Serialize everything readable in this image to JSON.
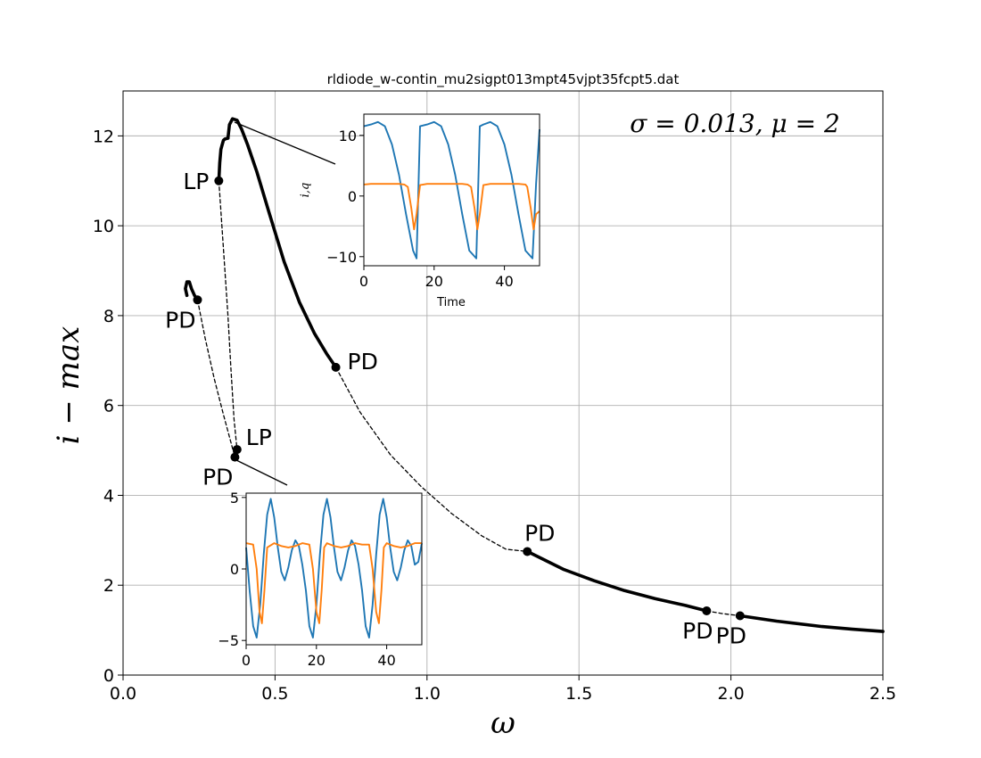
{
  "chart_data": [
    {
      "type": "line",
      "title": "rldiode_w-contin_mu2sigpt013mpt45vjpt35fcpt5.dat",
      "xlabel": "ω",
      "ylabel": "i − max",
      "annotation": "σ = 0.013, μ = 2",
      "xlim": [
        0.0,
        2.5
      ],
      "ylim": [
        0,
        13
      ],
      "xticks": [
        "0.0",
        "0.5",
        "1.0",
        "1.5",
        "2.0",
        "2.5"
      ],
      "yticks": [
        "0",
        "2",
        "4",
        "6",
        "8",
        "10",
        "12"
      ],
      "grid": true,
      "series": [
        {
          "style": "stable",
          "x": [
            0.315,
            0.318,
            0.322,
            0.33,
            0.335,
            0.345
          ],
          "y": [
            11.0,
            11.4,
            11.7,
            11.9,
            11.93,
            11.95
          ]
        },
        {
          "style": "stable",
          "x": [
            0.345,
            0.35,
            0.36,
            0.375,
            0.39,
            0.41,
            0.44,
            0.48,
            0.53,
            0.58,
            0.63,
            0.67,
            0.7
          ],
          "y": [
            11.95,
            12.25,
            12.38,
            12.35,
            12.15,
            11.8,
            11.2,
            10.3,
            9.2,
            8.3,
            7.6,
            7.15,
            6.85
          ]
        },
        {
          "style": "unstable",
          "x": [
            0.7,
            0.78,
            0.88,
            0.98,
            1.08,
            1.18,
            1.26,
            1.33
          ],
          "y": [
            6.85,
            5.85,
            4.9,
            4.2,
            3.6,
            3.1,
            2.8,
            2.75
          ]
        },
        {
          "style": "stable",
          "x": [
            1.33,
            1.45,
            1.55,
            1.65,
            1.75,
            1.85,
            1.92
          ],
          "y": [
            2.75,
            2.35,
            2.1,
            1.88,
            1.7,
            1.55,
            1.43
          ]
        },
        {
          "style": "unstable",
          "x": [
            1.92,
            1.97,
            2.03
          ],
          "y": [
            1.43,
            1.37,
            1.32
          ]
        },
        {
          "style": "stable",
          "x": [
            2.03,
            2.15,
            2.3,
            2.4,
            2.5
          ],
          "y": [
            1.32,
            1.2,
            1.08,
            1.02,
            0.97
          ]
        },
        {
          "style": "stable",
          "x": [
            0.21,
            0.205,
            0.21,
            0.218,
            0.225,
            0.235,
            0.245
          ],
          "y": [
            8.45,
            8.6,
            8.75,
            8.75,
            8.6,
            8.45,
            8.35
          ]
        },
        {
          "style": "unstable",
          "x": [
            0.245,
            0.27,
            0.3,
            0.33,
            0.35,
            0.368
          ],
          "y": [
            8.35,
            7.5,
            6.6,
            5.8,
            5.3,
            4.85
          ]
        },
        {
          "style": "unstable",
          "x": [
            0.315,
            0.33,
            0.345,
            0.355,
            0.365,
            0.375
          ],
          "y": [
            11.0,
            9.5,
            8.0,
            6.8,
            5.7,
            5.02
          ]
        },
        {
          "style": "unstable",
          "x": [
            0.368,
            0.375
          ],
          "y": [
            4.85,
            5.02
          ]
        }
      ],
      "points": [
        {
          "label": "LP",
          "x": 0.315,
          "y": 11.0,
          "anchor": "left"
        },
        {
          "label": "PD",
          "x": 0.245,
          "y": 8.35,
          "anchor": "below-left"
        },
        {
          "label": "PD",
          "x": 0.7,
          "y": 6.85,
          "anchor": "right"
        },
        {
          "label": "LP",
          "x": 0.375,
          "y": 5.02,
          "anchor": "above-right"
        },
        {
          "label": "PD",
          "x": 0.368,
          "y": 4.85,
          "anchor": "below-left"
        },
        {
          "label": "PD",
          "x": 1.33,
          "y": 2.75,
          "anchor": "above"
        },
        {
          "label": "PD",
          "x": 1.92,
          "y": 1.43,
          "anchor": "below"
        },
        {
          "label": "PD",
          "x": 2.03,
          "y": 1.32,
          "anchor": "below"
        }
      ]
    },
    {
      "type": "line",
      "title": "",
      "xlabel": "Time",
      "ylabel": "i,q",
      "xlim": [
        0,
        50
      ],
      "ylim": [
        -11.5,
        13.5
      ],
      "xticks": [
        "0",
        "20",
        "40"
      ],
      "yticks": [
        "−10",
        "0",
        "10"
      ],
      "series": [
        {
          "color": "#1f77b4",
          "x": [
            0,
            2,
            4,
            6,
            8,
            10,
            12,
            14,
            15,
            16,
            18,
            20,
            22,
            24,
            26,
            28,
            30,
            32,
            33,
            34,
            36,
            38,
            40,
            42,
            44,
            46,
            48,
            49,
            50
          ],
          "y": [
            11.5,
            11.8,
            12.2,
            11.5,
            8.5,
            3.5,
            -3,
            -9,
            -10.3,
            11.5,
            11.8,
            12.2,
            11.5,
            8.5,
            3.5,
            -3,
            -9,
            -10.3,
            11.5,
            11.8,
            12.2,
            11.5,
            8.5,
            3.5,
            -3,
            -9,
            -10.3,
            2,
            11
          ]
        },
        {
          "color": "#ff7f0e",
          "x": [
            0,
            2,
            4,
            6,
            8,
            10,
            11.5,
            12.5,
            13.5,
            14.3,
            15,
            16,
            18,
            20,
            22,
            24,
            26,
            28,
            29.5,
            30.5,
            31.5,
            32.3,
            33,
            34,
            36,
            38,
            40,
            42,
            44,
            46,
            46.5,
            47.5,
            48.3,
            49,
            50
          ],
          "y": [
            1.9,
            2.0,
            2.0,
            2.0,
            2.0,
            2.0,
            1.9,
            1.5,
            -2,
            -5.5,
            -3,
            1.8,
            2.0,
            2.0,
            2.0,
            2.0,
            2.0,
            2.0,
            1.9,
            1.5,
            -2,
            -5.5,
            -3,
            1.8,
            2.0,
            2.0,
            2.0,
            2.0,
            2.0,
            1.9,
            1.5,
            -2,
            -5.5,
            -3,
            -2.5
          ]
        }
      ]
    },
    {
      "type": "line",
      "title": "",
      "xlabel": "",
      "ylabel": "",
      "xlim": [
        0,
        50
      ],
      "ylim": [
        -5.3,
        5.3
      ],
      "xticks": [
        "0",
        "20",
        "40"
      ],
      "yticks": [
        "−5",
        "0",
        "5"
      ],
      "series": [
        {
          "color": "#1f77b4",
          "x": [
            0,
            1,
            2,
            3,
            4,
            5,
            6,
            7,
            8,
            9,
            10,
            11,
            12,
            13,
            14,
            15,
            16,
            17,
            18,
            19,
            20,
            21,
            22,
            23,
            24,
            25,
            26,
            27,
            28,
            29,
            30,
            31,
            32,
            33,
            34,
            35,
            36,
            37,
            38,
            39,
            40,
            41,
            42,
            43,
            44,
            45,
            46,
            47,
            48,
            49,
            50
          ],
          "y": [
            1.5,
            -1.5,
            -4.0,
            -4.8,
            -2.5,
            1.0,
            3.8,
            4.9,
            3.6,
            1.5,
            -0.2,
            -0.8,
            0.1,
            1.3,
            2.0,
            1.6,
            0.3,
            -1.5,
            -4.0,
            -4.8,
            -2.5,
            1.0,
            3.8,
            4.9,
            3.6,
            1.5,
            -0.2,
            -0.8,
            0.1,
            1.3,
            2.0,
            1.6,
            0.3,
            -1.5,
            -4.0,
            -4.8,
            -2.5,
            1.0,
            3.8,
            4.9,
            3.6,
            1.5,
            -0.2,
            -0.8,
            0.1,
            1.3,
            2.0,
            1.6,
            0.3,
            0.5,
            1.8
          ]
        },
        {
          "color": "#ff7f0e",
          "x": [
            0,
            2,
            3,
            3.8,
            4.5,
            5.2,
            6,
            8,
            10,
            12,
            14,
            16,
            18,
            19,
            20,
            20.8,
            21.5,
            22.2,
            23,
            25,
            27,
            29,
            31,
            33,
            35,
            36,
            37,
            37.8,
            38.5,
            39.2,
            40,
            42,
            44,
            46,
            48,
            50
          ],
          "y": [
            1.8,
            1.7,
            0.0,
            -3.0,
            -3.8,
            -1.5,
            1.5,
            1.8,
            1.6,
            1.5,
            1.6,
            1.8,
            1.7,
            0.0,
            -3.0,
            -3.8,
            -1.5,
            1.5,
            1.8,
            1.6,
            1.5,
            1.6,
            1.8,
            1.7,
            1.7,
            0.0,
            -3.0,
            -3.8,
            -1.5,
            1.5,
            1.8,
            1.6,
            1.5,
            1.6,
            1.8,
            1.8
          ]
        }
      ]
    }
  ]
}
